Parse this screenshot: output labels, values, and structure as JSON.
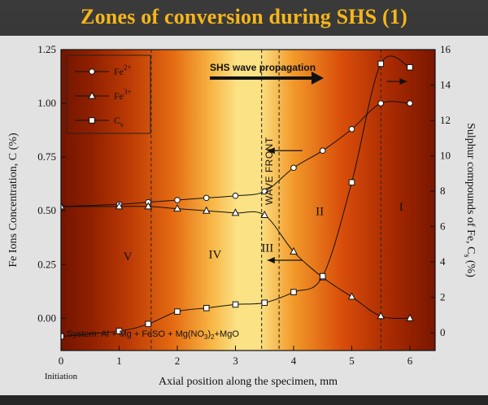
{
  "title": "Zones of conversion during SHS (1)",
  "chart_data": {
    "type": "line",
    "xlabel": "Axial position along the specimen, mm",
    "x_origin_label": "Initiation",
    "ylabel_left": "Fe Ions Concentration, C (%)",
    "ylabel_right": "Sulphur compounds of Fe, Cs (%)",
    "xlim": [
      0,
      6
    ],
    "ylim_left": [
      -0.15,
      1.25
    ],
    "ylim_right": [
      -1.0,
      16
    ],
    "x_ticks": [
      "0",
      "1",
      "2",
      "3",
      "4",
      "5",
      "6"
    ],
    "y_left_ticks": [
      "0.00",
      "0.25",
      "0.50",
      "0.75",
      "1.00",
      "1.25"
    ],
    "y_right_ticks": [
      "0",
      "2",
      "4",
      "6",
      "8",
      "10",
      "12",
      "14",
      "16"
    ],
    "grid": false,
    "legend_position": "top-left",
    "zone_boundaries": [
      1.55,
      3.45,
      3.75,
      5.5
    ],
    "zones": [
      {
        "label": "V",
        "x": 1.15,
        "y": 0.27
      },
      {
        "label": "IV",
        "x": 2.65,
        "y": 0.28
      },
      {
        "label": "III",
        "x": 3.55,
        "y": 0.31
      },
      {
        "label": "II",
        "x": 4.45,
        "y": 0.48
      },
      {
        "label": "I",
        "x": 5.85,
        "y": 0.5
      }
    ],
    "annotations": {
      "wave_propagation": "SHS wave propagation",
      "wave_front": "WAVE FRONT",
      "system": "System: Al + Mg + FeSO + Mg(NO3)2+MgO"
    },
    "series": [
      {
        "name": "Fe2+",
        "label_base": "Fe",
        "label_sup": "2+",
        "axis": "left",
        "marker": "circle",
        "x": [
          0,
          1,
          1.5,
          2,
          2.5,
          3,
          3.5,
          4,
          4.5,
          5,
          5.5,
          6
        ],
        "values": [
          0.52,
          0.53,
          0.54,
          0.55,
          0.56,
          0.57,
          0.59,
          0.7,
          0.78,
          0.88,
          1.0,
          1.0
        ]
      },
      {
        "name": "Fe3+",
        "label_base": "Fe",
        "label_sup": "3+",
        "axis": "left",
        "marker": "triangle",
        "x": [
          0,
          1,
          1.5,
          2,
          2.5,
          3,
          3.5,
          4,
          4.5,
          5,
          5.5,
          6
        ],
        "values": [
          0.52,
          0.52,
          0.52,
          0.51,
          0.5,
          0.49,
          0.48,
          0.31,
          0.19,
          0.1,
          0.01,
          0.0
        ]
      },
      {
        "name": "Cs",
        "label_base": "C",
        "label_sub": "s",
        "axis": "right",
        "marker": "square",
        "x": [
          0,
          1,
          1.5,
          2,
          2.5,
          3,
          3.5,
          4,
          4.5,
          5,
          5.5,
          6
        ],
        "values": [
          -0.2,
          0.1,
          0.5,
          1.2,
          1.4,
          1.6,
          1.7,
          2.3,
          3.2,
          8.5,
          15.2,
          15.0
        ]
      }
    ]
  }
}
